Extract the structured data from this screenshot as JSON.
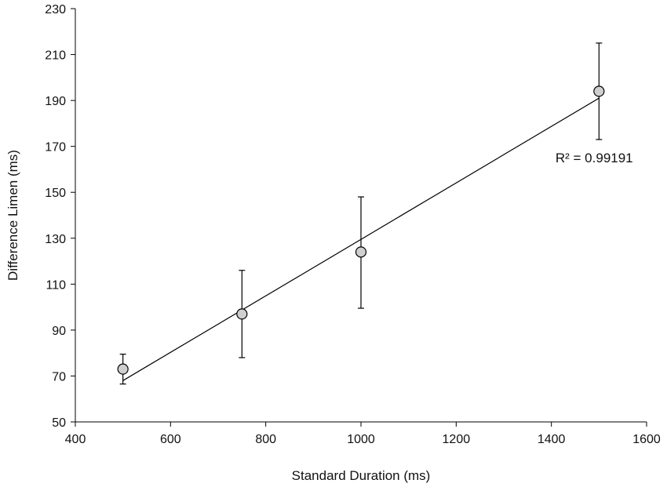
{
  "chart_data": {
    "type": "scatter",
    "xlabel": "Standard Duration (ms)",
    "ylabel": "Difference Limen (ms)",
    "xlim": [
      400,
      1600
    ],
    "ylim": [
      50,
      230
    ],
    "xticks": [
      400,
      600,
      800,
      1000,
      1200,
      1400,
      1600
    ],
    "yticks": [
      50,
      70,
      90,
      110,
      130,
      150,
      170,
      190,
      210,
      230
    ],
    "grid": false,
    "series": [
      {
        "x": [
          500,
          750,
          1000,
          1500
        ],
        "y": [
          73,
          97,
          124,
          194
        ],
        "error_upper": [
          79.5,
          116,
          148,
          215
        ],
        "error_lower": [
          66.5,
          78,
          99.5,
          173
        ]
      }
    ],
    "trendline": {
      "type": "linear",
      "x": [
        500,
        1500
      ],
      "y": [
        68,
        191
      ]
    },
    "annotations": [
      {
        "text": "R² = 0.99191",
        "x": 1490,
        "y": 163
      }
    ],
    "colors": {
      "marker_fill": "#cfcfcf",
      "stroke": "#000000"
    }
  }
}
